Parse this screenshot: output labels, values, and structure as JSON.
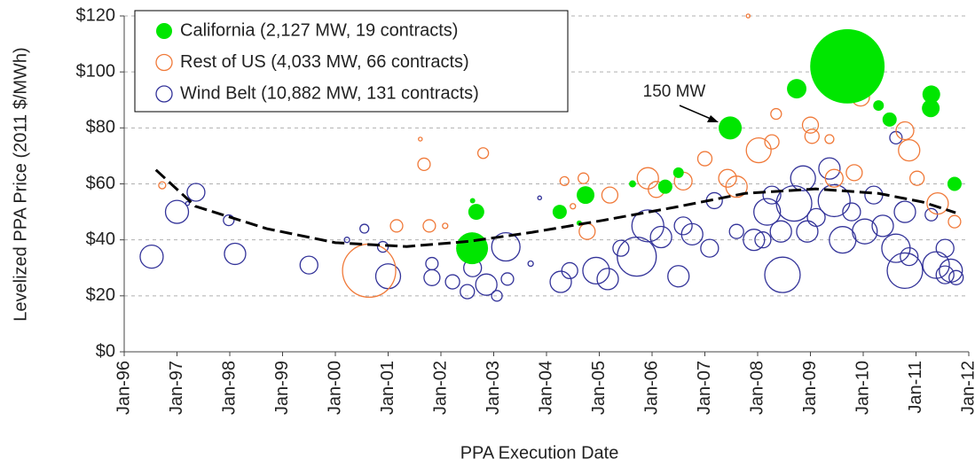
{
  "chart_data": {
    "type": "scatter",
    "x_label": "PPA Execution Date",
    "y_label": "Levelized PPA Price (2011 $/MWh)",
    "xlim": [
      1996,
      2012
    ],
    "ylim": [
      0,
      120
    ],
    "xticks": [
      {
        "value": 1996,
        "label": "Jan-96"
      },
      {
        "value": 1997,
        "label": "Jan-97"
      },
      {
        "value": 1998,
        "label": "Jan-98"
      },
      {
        "value": 1999,
        "label": "Jan-99"
      },
      {
        "value": 2000,
        "label": "Jan-00"
      },
      {
        "value": 2001,
        "label": "Jan-01"
      },
      {
        "value": 2002,
        "label": "Jan-02"
      },
      {
        "value": 2003,
        "label": "Jan-03"
      },
      {
        "value": 2004,
        "label": "Jan-04"
      },
      {
        "value": 2005,
        "label": "Jan-05"
      },
      {
        "value": 2006,
        "label": "Jan-06"
      },
      {
        "value": 2007,
        "label": "Jan-07"
      },
      {
        "value": 2008,
        "label": "Jan-08"
      },
      {
        "value": 2009,
        "label": "Jan-09"
      },
      {
        "value": 2010,
        "label": "Jan-10"
      },
      {
        "value": 2011,
        "label": "Jan-11"
      },
      {
        "value": 2012,
        "label": "Jan-12"
      }
    ],
    "yticks": [
      {
        "value": 0,
        "label": "$0"
      },
      {
        "value": 20,
        "label": "$20"
      },
      {
        "value": 40,
        "label": "$40"
      },
      {
        "value": 60,
        "label": "$60"
      },
      {
        "value": 80,
        "label": "$80"
      },
      {
        "value": 100,
        "label": "$100"
      },
      {
        "value": 120,
        "label": "$120"
      }
    ],
    "grid": true,
    "legend": "upper left",
    "annotation": "150 MW",
    "series": [
      {
        "name": "California (2,127 MW, 19 contracts)",
        "color": "#00e600",
        "filled": true,
        "x": [
          2002.59,
          2002.67,
          2002.6,
          2004.25,
          2004.62,
          2004.74,
          2005.63,
          2006.25,
          2006.5,
          2007.48,
          2008.74,
          2009.7,
          2010.29,
          2010.5,
          2011.29,
          2011.28,
          2011.73
        ],
        "values": [
          37,
          50,
          54,
          50,
          46,
          56,
          60,
          59,
          64,
          80,
          94,
          102,
          88,
          83,
          92,
          87,
          60
        ],
        "size": [
          288,
          72,
          8,
          57,
          8,
          89,
          14,
          57,
          32,
          150,
          107,
          1565,
          32,
          57,
          89,
          89,
          57
        ]
      },
      {
        "name": "Rest of US (4,033 MW, 66 contracts)",
        "color": "#f07a3a",
        "filled": false,
        "x": [
          1996.72,
          2001.61,
          2001.16,
          2000.64,
          2001.68,
          2001.78,
          2002.08,
          2002.8,
          2002.64,
          2004.34,
          2004.5,
          2004.7,
          2004.77,
          2005.2,
          2005.92,
          2006.08,
          2006.59,
          2007.0,
          2007.43,
          2007.6,
          2008.02,
          2008.27,
          2008.35,
          2007.82,
          2009.0,
          2009.36,
          2009.45,
          2009.83,
          2009.95,
          2010.03,
          2010.79,
          2010.87,
          2011.02,
          2011.41,
          2011.73,
          2009.03
        ],
        "values": [
          59.5,
          76,
          45,
          29,
          67,
          45,
          45,
          71,
          40,
          61,
          52,
          62,
          43,
          56,
          62,
          58,
          61,
          69,
          62,
          59,
          72,
          75,
          85,
          120,
          81,
          76,
          62,
          64,
          91,
          94,
          79,
          72,
          62,
          53,
          46.5,
          77
        ],
        "size": [
          14,
          4,
          43,
          800,
          43,
          43,
          8,
          32,
          43,
          22,
          8,
          32,
          72,
          72,
          128,
          72,
          89,
          57,
          89,
          128,
          174,
          57,
          32,
          4,
          72,
          22,
          89,
          72,
          89,
          43,
          89,
          128,
          57,
          128,
          43,
          57
        ]
      },
      {
        "name": "Wind Belt (10,882 MW, 131 contracts)",
        "color": "#333399",
        "filled": false,
        "x": [
          1996.52,
          1997.0,
          1997.2,
          1997.36,
          1997.98,
          1998.1,
          1999.5,
          2000.22,
          2000.55,
          2000.9,
          2001.0,
          2001.83,
          2001.83,
          2002.22,
          2002.5,
          2002.6,
          2002.86,
          2003.06,
          2003.23,
          2003.26,
          2003.7,
          2003.87,
          2004.27,
          2004.44,
          2004.94,
          2005.16,
          2005.41,
          2005.71,
          2005.92,
          2006.17,
          2006.59,
          2006.5,
          2006.76,
          2007.09,
          2007.18,
          2007.6,
          2007.93,
          2008.1,
          2008.18,
          2008.27,
          2008.44,
          2008.47,
          2008.69,
          2008.86,
          2008.94,
          2009.11,
          2009.36,
          2009.45,
          2009.61,
          2009.78,
          2010.03,
          2010.2,
          2010.37,
          2010.62,
          2010.79,
          2010.87,
          2011.29,
          2010.79,
          2011.38,
          2011.55,
          2011.66,
          2011.76,
          2011.55,
          2010.62
        ],
        "values": [
          34,
          50,
          53,
          57,
          47,
          35,
          31,
          40,
          44,
          37.5,
          27,
          31.5,
          26.5,
          25,
          21.5,
          30,
          24,
          20,
          37.5,
          26,
          31.5,
          55,
          25,
          29,
          29,
          26,
          37,
          34,
          45,
          41,
          45,
          27,
          42,
          37,
          54,
          43,
          40,
          40,
          50,
          56,
          43,
          27.5,
          53,
          62,
          43,
          48,
          65.5,
          54,
          40,
          50,
          43,
          56,
          45,
          37,
          50,
          34,
          49,
          29,
          31,
          27.5,
          29,
          26.5,
          37,
          76.5
        ],
        "size": [
          150,
          150,
          4,
          89,
          32,
          128,
          89,
          8,
          22,
          32,
          174,
          43,
          72,
          57,
          57,
          89,
          128,
          32,
          227,
          43,
          8,
          4,
          128,
          72,
          200,
          128,
          72,
          430,
          288,
          128,
          89,
          128,
          128,
          89,
          72,
          57,
          128,
          72,
          200,
          89,
          128,
          355,
          355,
          174,
          128,
          89,
          128,
          288,
          200,
          89,
          174,
          89,
          128,
          227,
          128,
          89,
          43,
          355,
          200,
          89,
          150,
          57,
          89,
          43
        ]
      }
    ],
    "trend": {
      "color": "#000000",
      "x": [
        1996.6,
        1997.35,
        1998.7,
        2000.0,
        2001.35,
        2002.55,
        2003.73,
        2005.08,
        2006.42,
        2007.76,
        2009.1,
        2010.29,
        2011.13,
        2011.75
      ],
      "values": [
        65,
        52,
        44,
        39,
        37.6,
        39.5,
        42.7,
        47,
        51.6,
        56.6,
        58.2,
        56.6,
        53.5,
        49.7
      ]
    }
  }
}
